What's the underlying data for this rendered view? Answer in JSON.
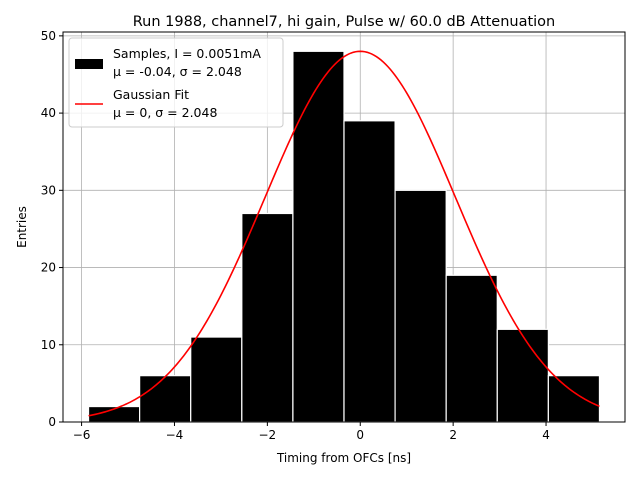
{
  "chart_data": {
    "type": "bar",
    "title": "Run 1988, channel7, hi gain, Pulse w/ 60.0 dB Attenuation",
    "xlabel": "Timing from OFCs [ns]",
    "ylabel": "Entries",
    "xlim": [
      -6.4,
      5.7
    ],
    "ylim": [
      0,
      50.5
    ],
    "xticks": [
      -6,
      -4,
      -2,
      0,
      2,
      4
    ],
    "yticks": [
      0,
      10,
      20,
      30,
      40,
      50
    ],
    "grid": true,
    "legend_position": "top-left",
    "histogram": {
      "name": "Samples, I = 0.0051mA",
      "stats": "μ = -0.04, σ = 2.048",
      "color": "#000000",
      "edge_color": "#ffffff",
      "bin_edges": [
        -5.85,
        -4.75,
        -3.65,
        -2.55,
        -1.45,
        -0.35,
        0.75,
        1.85,
        2.95,
        4.05,
        5.15
      ],
      "counts": [
        2,
        6,
        11,
        27,
        48,
        39,
        30,
        19,
        12,
        6
      ]
    },
    "fit": {
      "name": "Gaussian Fit",
      "stats": "μ = 0, σ = 2.048",
      "color": "#ff0000",
      "mu": 0,
      "sigma": 2.048,
      "amplitude": 48,
      "x_range": [
        -5.85,
        5.15
      ]
    }
  }
}
